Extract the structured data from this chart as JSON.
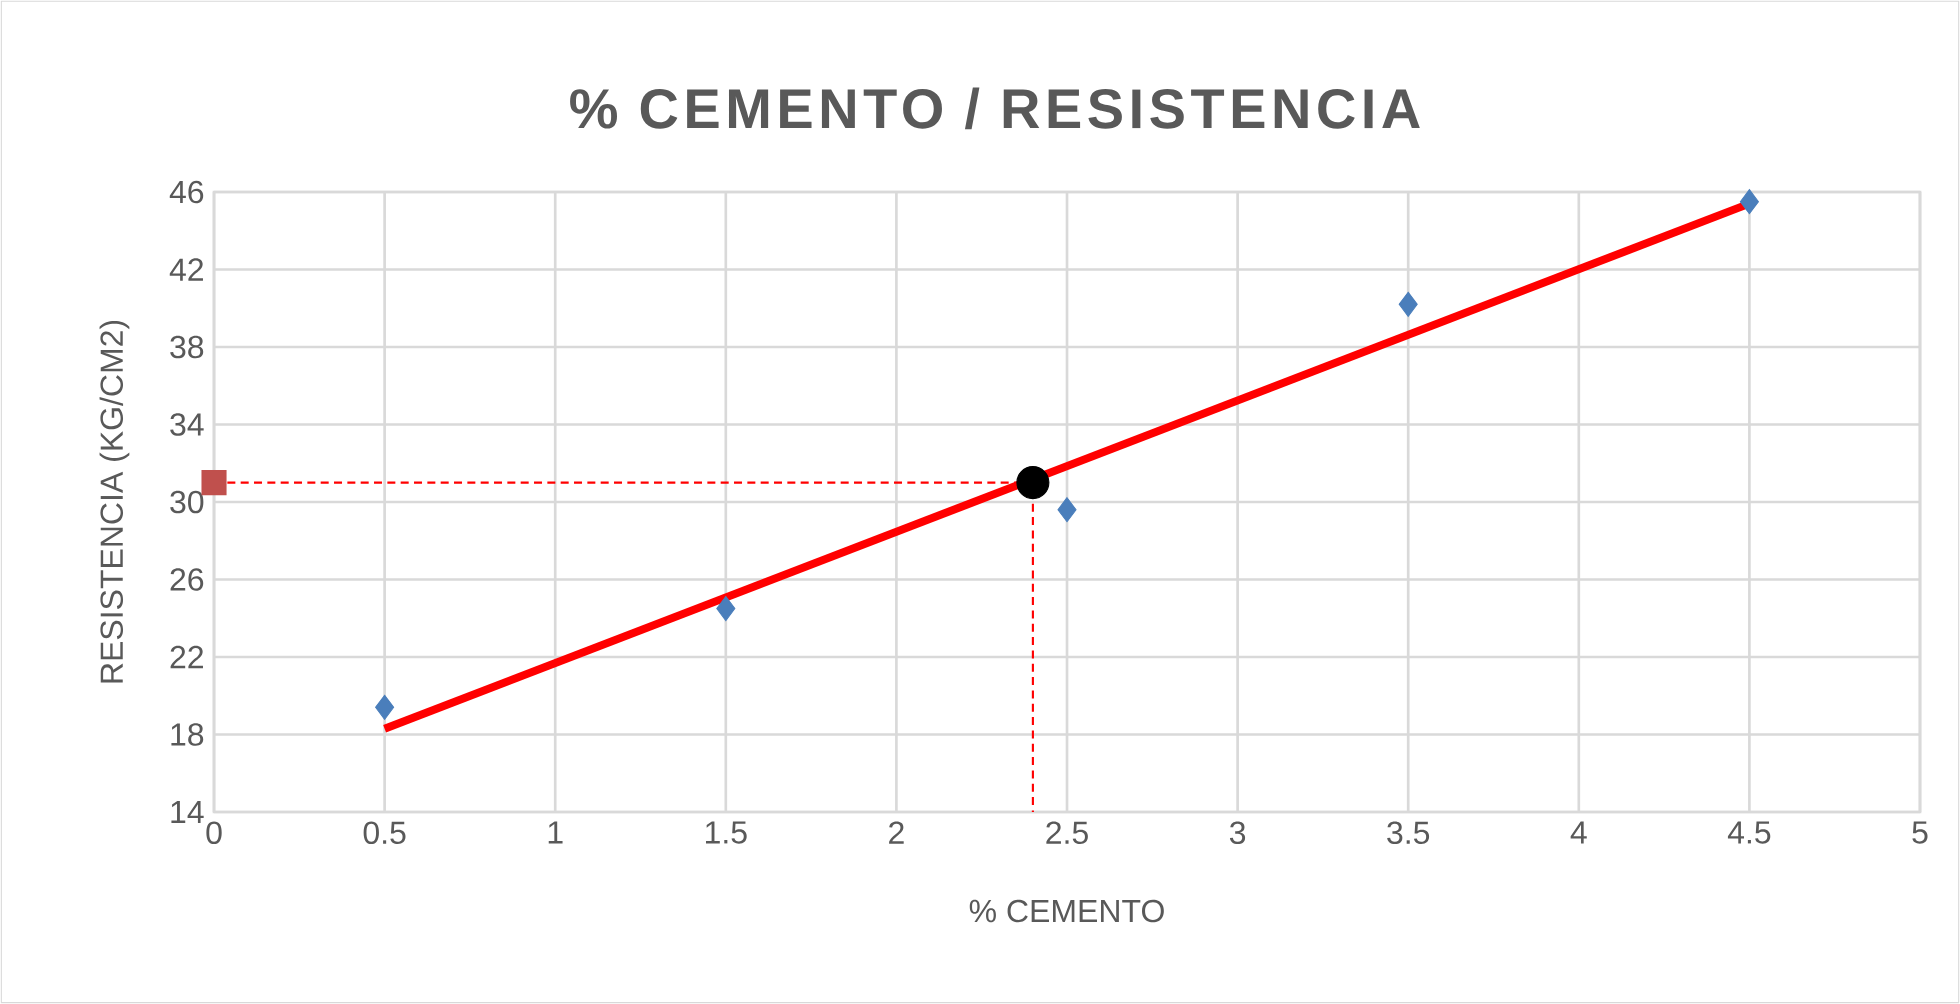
{
  "chart_data": {
    "type": "scatter",
    "title": "% CEMENTO / RESISTENCIA",
    "xlabel": "% CEMENTO",
    "ylabel": "RESISTENCIA (KG/CM2)",
    "xlim": [
      0,
      5
    ],
    "ylim": [
      14,
      46
    ],
    "xticks": [
      0,
      0.5,
      1,
      1.5,
      2,
      2.5,
      3,
      3.5,
      4,
      4.5,
      5
    ],
    "yticks": [
      14,
      18,
      22,
      26,
      30,
      34,
      38,
      42,
      46
    ],
    "grid": true,
    "series": [
      {
        "marker": "diamond",
        "color": "#4a7ebb",
        "x": [
          0.5,
          1.5,
          2.5,
          3.5,
          4.5
        ],
        "values": [
          19.4,
          24.5,
          29.6,
          40.2,
          45.5
        ]
      },
      {
        "type": "line",
        "marker": "none",
        "line_style": "solid",
        "color": "#ff0000",
        "x": [
          0.5,
          4.5
        ],
        "values": [
          18.3,
          45.4
        ]
      },
      {
        "type": "line",
        "marker": "none",
        "line_style": "dashed",
        "color": "#ff0000",
        "x": [
          0,
          2.4,
          2.4
        ],
        "values": [
          31,
          31,
          14
        ]
      },
      {
        "type": "scatter",
        "marker": "circle",
        "color": "#000000",
        "x": [
          2.4
        ],
        "values": [
          31
        ]
      },
      {
        "type": "scatter",
        "marker": "square",
        "color": "#c0504d",
        "x": [
          0
        ],
        "values": [
          31
        ]
      }
    ]
  }
}
